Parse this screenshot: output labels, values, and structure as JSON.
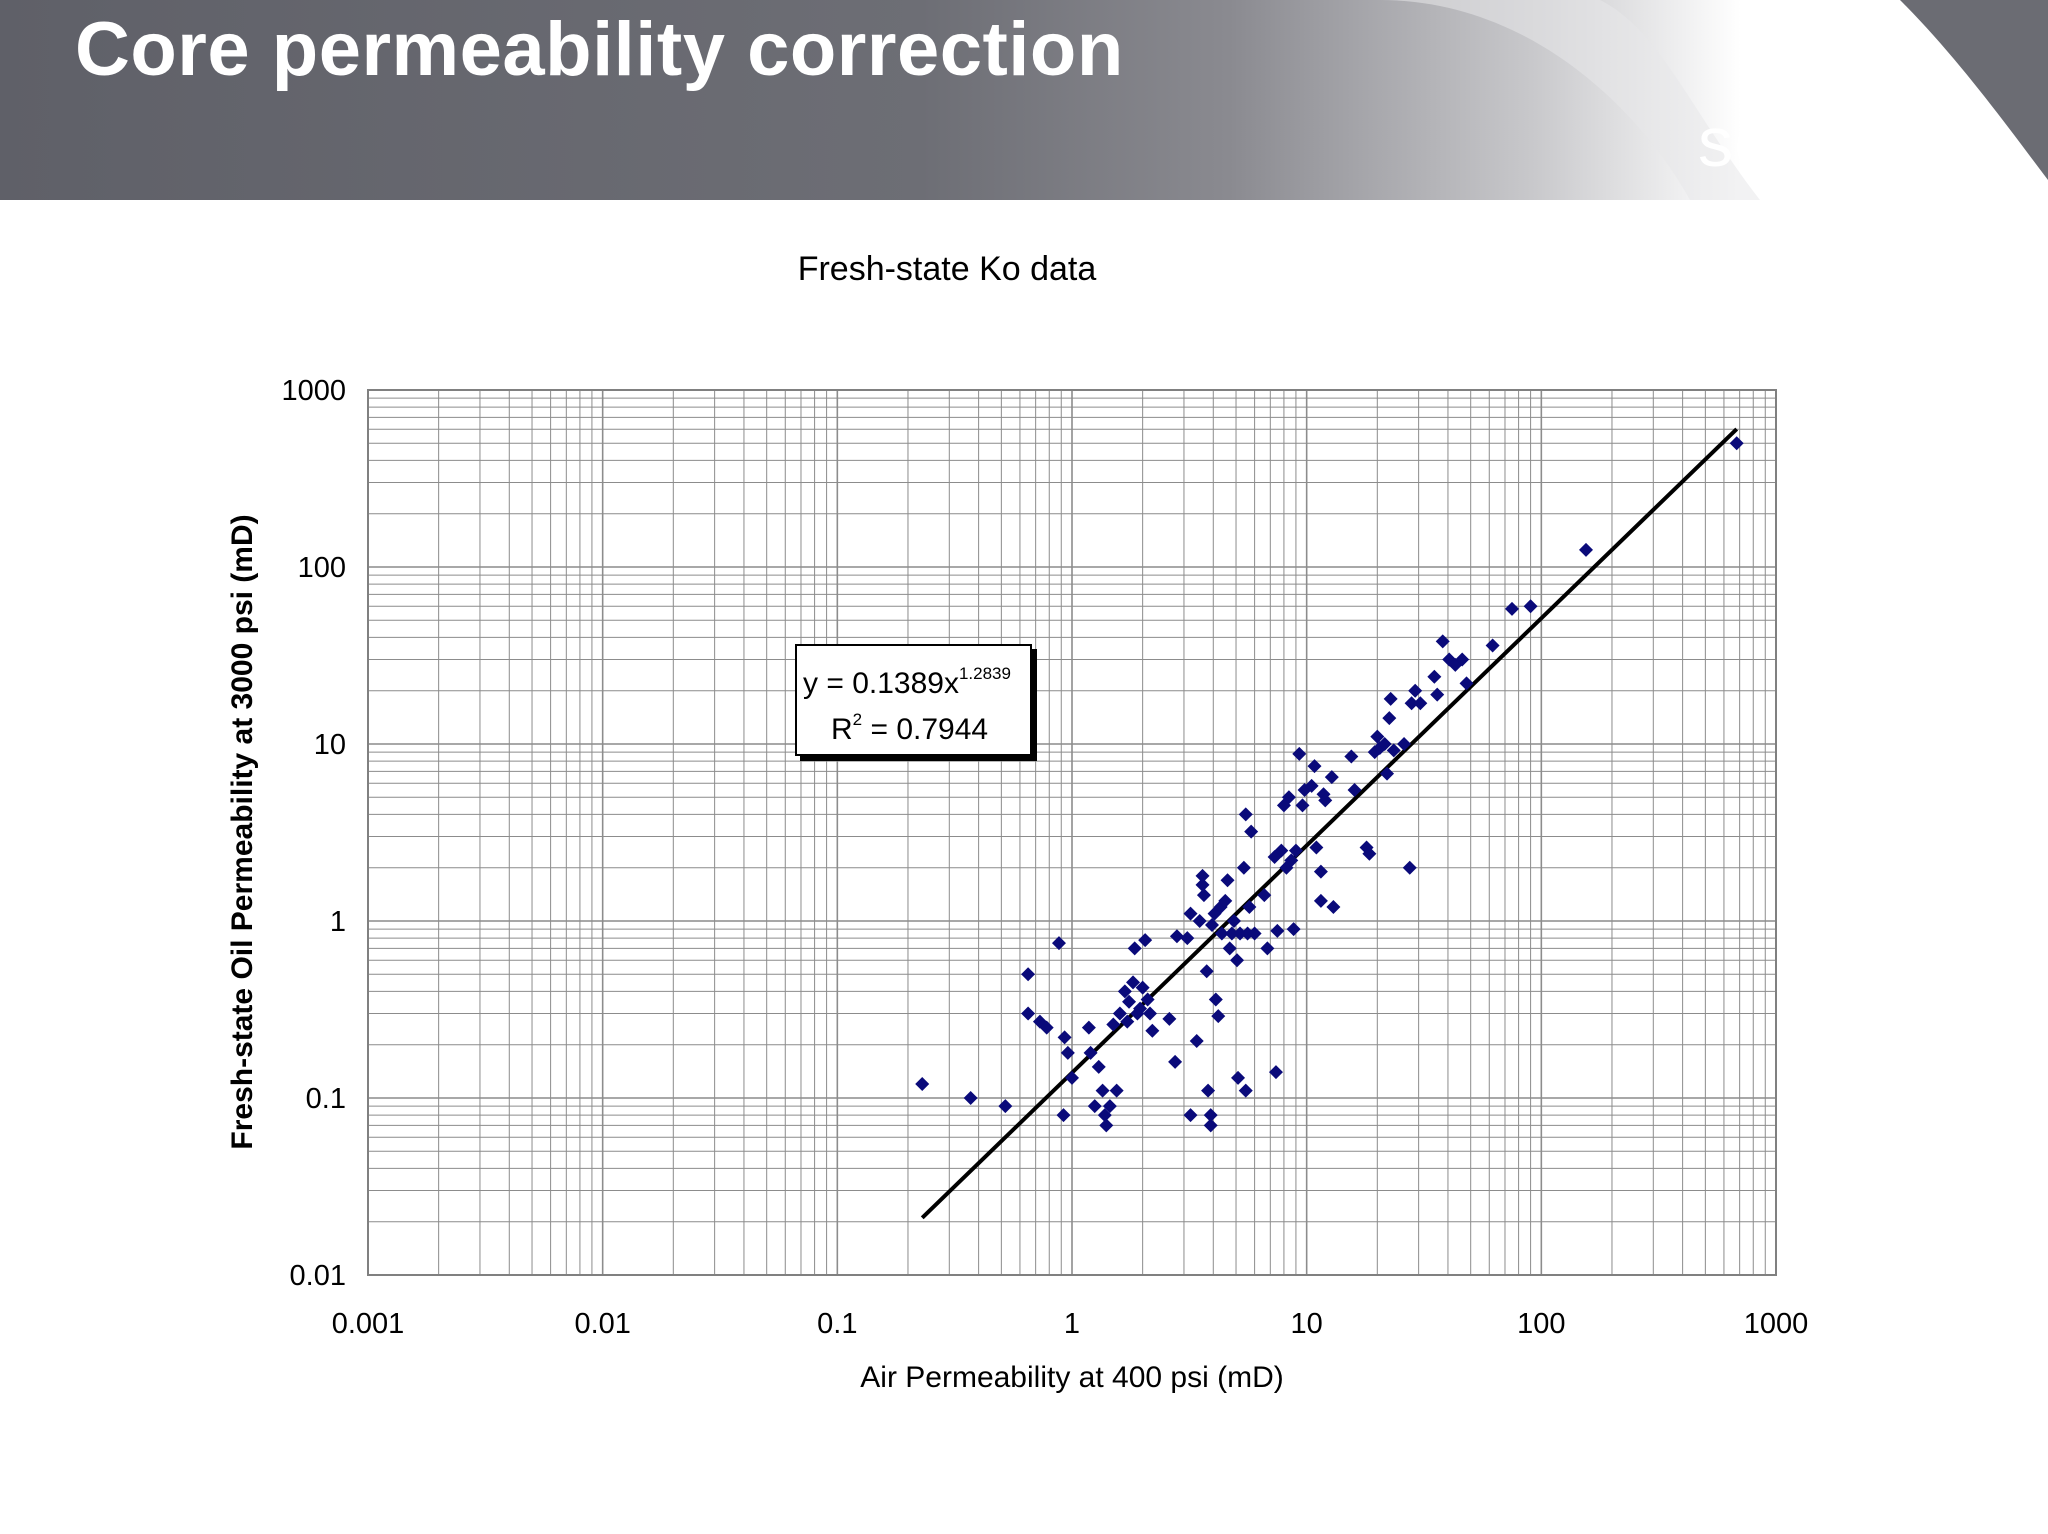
{
  "slide": {
    "title": "Core permeability correction",
    "logo_text": "senergy"
  },
  "colors": {
    "header_gray": "#66676e",
    "marker": "#0a0a7a",
    "trendline": "#000000",
    "grid": "#8c8c8c"
  },
  "chart_data": {
    "type": "scatter",
    "title": "Fresh-state Ko data",
    "xlabel": "Air Permeability at 400 psi (mD)",
    "ylabel": "Fresh-state Oil Permeability at 3000 psi (mD)",
    "xscale": "log",
    "yscale": "log",
    "xlim": [
      0.001,
      1000
    ],
    "ylim": [
      0.01,
      1000
    ],
    "xticks": [
      "0.001",
      "0.01",
      "0.1",
      "1",
      "10",
      "100",
      "1000"
    ],
    "yticks": [
      "0.01",
      "0.1",
      "1",
      "10",
      "100",
      "1000"
    ],
    "grid": true,
    "legend": "none",
    "trendline": {
      "type": "power",
      "a": 0.1389,
      "b": 1.2839,
      "x_range": [
        0.23,
        680
      ],
      "equation_prefix": "y = 0.1389x",
      "equation_exponent": "1.2839",
      "r2_prefix": "R",
      "r2_exponent": "2",
      "r2_suffix": " = 0.7944"
    },
    "series": [
      {
        "marker": "diamond",
        "points": [
          [
            0.23,
            0.12
          ],
          [
            0.37,
            0.1
          ],
          [
            0.52,
            0.09
          ],
          [
            0.65,
            0.5
          ],
          [
            0.65,
            0.3
          ],
          [
            0.73,
            0.27
          ],
          [
            0.78,
            0.25
          ],
          [
            0.88,
            0.75
          ],
          [
            0.92,
            0.08
          ],
          [
            0.93,
            0.22
          ],
          [
            0.96,
            0.18
          ],
          [
            1.0,
            0.13
          ],
          [
            1.18,
            0.25
          ],
          [
            1.2,
            0.18
          ],
          [
            1.25,
            0.09
          ],
          [
            1.3,
            0.15
          ],
          [
            1.35,
            0.11
          ],
          [
            1.38,
            0.08
          ],
          [
            1.4,
            0.07
          ],
          [
            1.45,
            0.09
          ],
          [
            1.5,
            0.26
          ],
          [
            1.55,
            0.11
          ],
          [
            1.6,
            0.3
          ],
          [
            1.68,
            0.4
          ],
          [
            1.72,
            0.27
          ],
          [
            1.75,
            0.35
          ],
          [
            1.82,
            0.45
          ],
          [
            1.85,
            0.7
          ],
          [
            1.9,
            0.3
          ],
          [
            1.95,
            0.32
          ],
          [
            2.0,
            0.42
          ],
          [
            2.05,
            0.78
          ],
          [
            2.1,
            0.36
          ],
          [
            2.15,
            0.3
          ],
          [
            2.2,
            0.24
          ],
          [
            2.6,
            0.28
          ],
          [
            2.75,
            0.16
          ],
          [
            2.8,
            0.82
          ],
          [
            3.1,
            0.8
          ],
          [
            3.2,
            1.1
          ],
          [
            3.2,
            0.08
          ],
          [
            3.4,
            0.21
          ],
          [
            3.5,
            1.0
          ],
          [
            3.6,
            1.8
          ],
          [
            3.6,
            1.6
          ],
          [
            3.65,
            1.4
          ],
          [
            3.75,
            0.52
          ],
          [
            3.8,
            0.11
          ],
          [
            3.9,
            0.07
          ],
          [
            3.9,
            0.08
          ],
          [
            3.95,
            0.95
          ],
          [
            4.05,
            1.1
          ],
          [
            4.1,
            0.36
          ],
          [
            4.2,
            0.29
          ],
          [
            4.3,
            1.2
          ],
          [
            4.35,
            0.85
          ],
          [
            4.5,
            1.3
          ],
          [
            4.6,
            1.7
          ],
          [
            4.7,
            0.7
          ],
          [
            4.8,
            0.85
          ],
          [
            4.9,
            1.0
          ],
          [
            5.05,
            0.6
          ],
          [
            5.1,
            0.13
          ],
          [
            5.2,
            0.85
          ],
          [
            5.4,
            2.0
          ],
          [
            5.5,
            4.0
          ],
          [
            5.5,
            0.11
          ],
          [
            5.6,
            0.85
          ],
          [
            5.7,
            1.2
          ],
          [
            5.8,
            3.2
          ],
          [
            6.0,
            0.85
          ],
          [
            6.6,
            1.4
          ],
          [
            6.8,
            0.7
          ],
          [
            7.3,
            2.3
          ],
          [
            7.4,
            0.14
          ],
          [
            7.5,
            0.88
          ],
          [
            7.8,
            2.5
          ],
          [
            8.0,
            4.5
          ],
          [
            8.2,
            2.0
          ],
          [
            8.4,
            5.0
          ],
          [
            8.6,
            2.2
          ],
          [
            8.8,
            0.9
          ],
          [
            9.0,
            2.5
          ],
          [
            9.3,
            8.8
          ],
          [
            9.6,
            4.5
          ],
          [
            9.8,
            5.5
          ],
          [
            10.5,
            5.8
          ],
          [
            10.8,
            7.5
          ],
          [
            11.0,
            2.6
          ],
          [
            11.5,
            1.3
          ],
          [
            11.5,
            1.9
          ],
          [
            11.8,
            5.2
          ],
          [
            12.0,
            4.8
          ],
          [
            12.8,
            6.5
          ],
          [
            13.0,
            1.2
          ],
          [
            15.5,
            8.5
          ],
          [
            16.0,
            5.5
          ],
          [
            18.0,
            2.6
          ],
          [
            18.5,
            2.4
          ],
          [
            19.5,
            9.0
          ],
          [
            20.0,
            11.0
          ],
          [
            20.5,
            9.5
          ],
          [
            21.5,
            10.0
          ],
          [
            22.0,
            6.8
          ],
          [
            22.5,
            14.0
          ],
          [
            22.8,
            18.0
          ],
          [
            23.5,
            9.2
          ],
          [
            26.0,
            10.0
          ],
          [
            27.5,
            2.0
          ],
          [
            28.0,
            17.0
          ],
          [
            29.0,
            20.0
          ],
          [
            30.5,
            17.0
          ],
          [
            35.0,
            24.0
          ],
          [
            36.0,
            19.0
          ],
          [
            38.0,
            38.0
          ],
          [
            40.5,
            30.0
          ],
          [
            43.0,
            28.0
          ],
          [
            46.0,
            30.0
          ],
          [
            48.0,
            22.0
          ],
          [
            62.0,
            36.0
          ],
          [
            75.0,
            58.0
          ],
          [
            90.0,
            60.0
          ],
          [
            155.0,
            125.0
          ],
          [
            680.0,
            500.0
          ]
        ]
      }
    ]
  }
}
